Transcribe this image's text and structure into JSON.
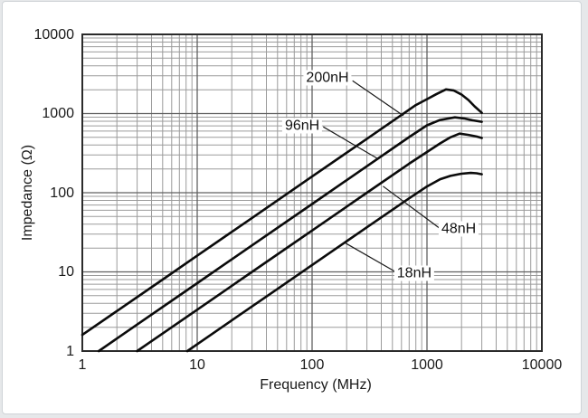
{
  "chart_data": {
    "type": "line",
    "title": "",
    "xlabel": "Frequency (MHz)",
    "ylabel": "Impedance (Ω)",
    "x_scale": "log",
    "y_scale": "log",
    "xlim": [
      1,
      10000
    ],
    "ylim": [
      1,
      10000
    ],
    "x_ticks": [
      "1",
      "10",
      "100",
      "1000",
      "10000"
    ],
    "y_ticks": [
      "1",
      "10",
      "100",
      "1000",
      "10000"
    ],
    "grid": "full log grid, major decades + minor 2-9 lines, framed plot box",
    "legend_position": "inline annotations with leader lines",
    "colors": {
      "curve": "#0b0b0b",
      "grid_major": "#606060",
      "grid_minor": "#9b9b9b",
      "frame": "#2b2b2b",
      "text": "#1a1a1a",
      "leader": "#1a1a1a",
      "card_border": "#cfd3d7",
      "card_bg": "#ffffff",
      "outer_bg": "#e6e8ea"
    },
    "series": [
      {
        "name": "200nH",
        "points": [
          [
            1,
            1.6
          ],
          [
            2,
            3.2
          ],
          [
            5,
            8
          ],
          [
            10,
            16
          ],
          [
            30,
            48
          ],
          [
            100,
            160
          ],
          [
            300,
            480
          ],
          [
            600,
            960
          ],
          [
            800,
            1280
          ],
          [
            1000,
            1520
          ],
          [
            1200,
            1750
          ],
          [
            1464,
            2020
          ],
          [
            1700,
            1960
          ],
          [
            2000,
            1740
          ],
          [
            2300,
            1480
          ],
          [
            2600,
            1230
          ],
          [
            3000,
            1020
          ]
        ]
      },
      {
        "name": "96nH",
        "points": [
          [
            1.39,
            1
          ],
          [
            3,
            2.16
          ],
          [
            10,
            7.2
          ],
          [
            30,
            21.6
          ],
          [
            100,
            72
          ],
          [
            300,
            216
          ],
          [
            700,
            504
          ],
          [
            1000,
            710
          ],
          [
            1300,
            830
          ],
          [
            1750,
            895
          ],
          [
            2100,
            868
          ],
          [
            2500,
            820
          ],
          [
            3000,
            788
          ]
        ]
      },
      {
        "name": "48nH",
        "points": [
          [
            3,
            1
          ],
          [
            10,
            3.33
          ],
          [
            30,
            10
          ],
          [
            100,
            33.3
          ],
          [
            300,
            100
          ],
          [
            700,
            233
          ],
          [
            1000,
            327
          ],
          [
            1300,
            420
          ],
          [
            1600,
            500
          ],
          [
            1920,
            558
          ],
          [
            2300,
            538
          ],
          [
            2700,
            512
          ],
          [
            3000,
            492
          ]
        ]
      },
      {
        "name": "18nH",
        "points": [
          [
            8.2,
            1
          ],
          [
            20,
            2.44
          ],
          [
            50,
            6.1
          ],
          [
            100,
            12.2
          ],
          [
            300,
            36.6
          ],
          [
            700,
            85
          ],
          [
            1000,
            120
          ],
          [
            1300,
            148
          ],
          [
            1600,
            163
          ],
          [
            2000,
            174
          ],
          [
            2400,
            178
          ],
          [
            2700,
            176
          ],
          [
            3000,
            171
          ]
        ]
      }
    ],
    "annotations": [
      {
        "label": "200nH",
        "label_at": [
          136,
          2800
        ],
        "leader": [
          [
            225,
            2600
          ],
          [
            624,
            940
          ]
        ]
      },
      {
        "label": "96nH",
        "label_at": [
          82,
          700
        ],
        "leader": [
          [
            125,
            680
          ],
          [
            374,
            268
          ]
        ]
      },
      {
        "label": "48nH",
        "label_at": [
          1890,
          34.5
        ],
        "leader": [
          [
            1280,
            35.8
          ],
          [
            414,
            121
          ]
        ]
      },
      {
        "label": "18nH",
        "label_at": [
          775,
          9.6
        ],
        "leader": [
          [
            540,
            9.9
          ],
          [
            196,
            23
          ]
        ]
      }
    ]
  }
}
